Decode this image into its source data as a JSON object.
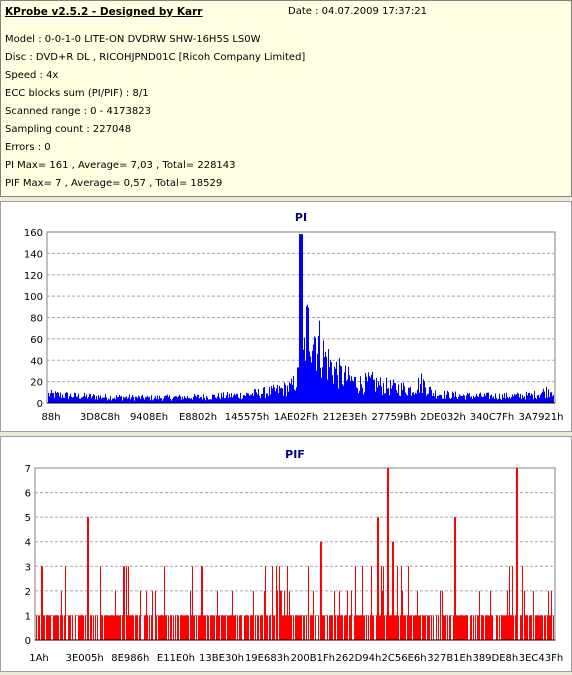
{
  "header": {
    "title": "KProbe v2.5.2 - Designed by Karr",
    "date": "Date : 04.07.2009 17:37:21",
    "lines": [
      "Model : 0-0-1-0 LITE-ON DVDRW SHW-16H5S  LS0W",
      "Disc : DVD+R DL , RICOHJPND01C [Ricoh Company Limited]",
      "Speed : 4x",
      "ECC blocks sum (PI/PIF) : 8/1",
      "Scanned range : 0 - 4173823",
      "Sampling count : 227048",
      "Errors : 0",
      "PI Max= 161 , Average= 7,03 , Total= 228143",
      "PIF Max= 7 , Average= 0,57 , Total= 18529"
    ]
  },
  "chart_data": [
    {
      "type": "area",
      "title": "PI",
      "color": "#0000ff",
      "ylim": [
        0,
        160
      ],
      "yticks": [
        0,
        20,
        40,
        60,
        80,
        100,
        120,
        140,
        160
      ],
      "grid": true,
      "xticks": [
        "88h",
        "3D8C8h",
        "9408Eh",
        "E8802h",
        "145575h",
        "1AE02Fh",
        "212E3Eh",
        "27759Bh",
        "2DE032h",
        "340C7Fh",
        "3A7921h"
      ],
      "profile_x": [
        0,
        0.06,
        0.12,
        0.2,
        0.3,
        0.38,
        0.44,
        0.48,
        0.495,
        0.5,
        0.505,
        0.51,
        0.52,
        0.53,
        0.545,
        0.56,
        0.58,
        0.6,
        0.62,
        0.64,
        0.66,
        0.68,
        0.7,
        0.72,
        0.74,
        0.76,
        0.78,
        0.8,
        0.84,
        0.88,
        0.92,
        0.96,
        1.0
      ],
      "profile_y": [
        10,
        8,
        7,
        6,
        7,
        9,
        13,
        18,
        30,
        158,
        50,
        82,
        90,
        75,
        55,
        42,
        32,
        26,
        22,
        24,
        20,
        18,
        17,
        16,
        24,
        12,
        10,
        9,
        8,
        8,
        8,
        9,
        16
      ]
    },
    {
      "type": "bar",
      "title": "PIF",
      "color": "#ff0000",
      "ylim": [
        0,
        7
      ],
      "yticks": [
        0,
        1,
        2,
        3,
        4,
        5,
        6,
        7
      ],
      "grid": true,
      "xticks": [
        "1Ah",
        "3E005h",
        "8E986h",
        "E11E0h",
        "13BE30h",
        "19E683h",
        "200B1Fh",
        "262D94h",
        "2C56E6h",
        "327B1Eh",
        "389DE8h",
        "3EC43Fh"
      ],
      "peaks_x": [
        0.01,
        0.1,
        0.17,
        0.32,
        0.55,
        0.66,
        0.68,
        0.69,
        0.81,
        0.93,
        0.94
      ],
      "peaks_y": [
        3,
        5,
        3,
        3,
        4,
        5,
        7,
        4,
        5,
        7,
        3
      ]
    }
  ]
}
